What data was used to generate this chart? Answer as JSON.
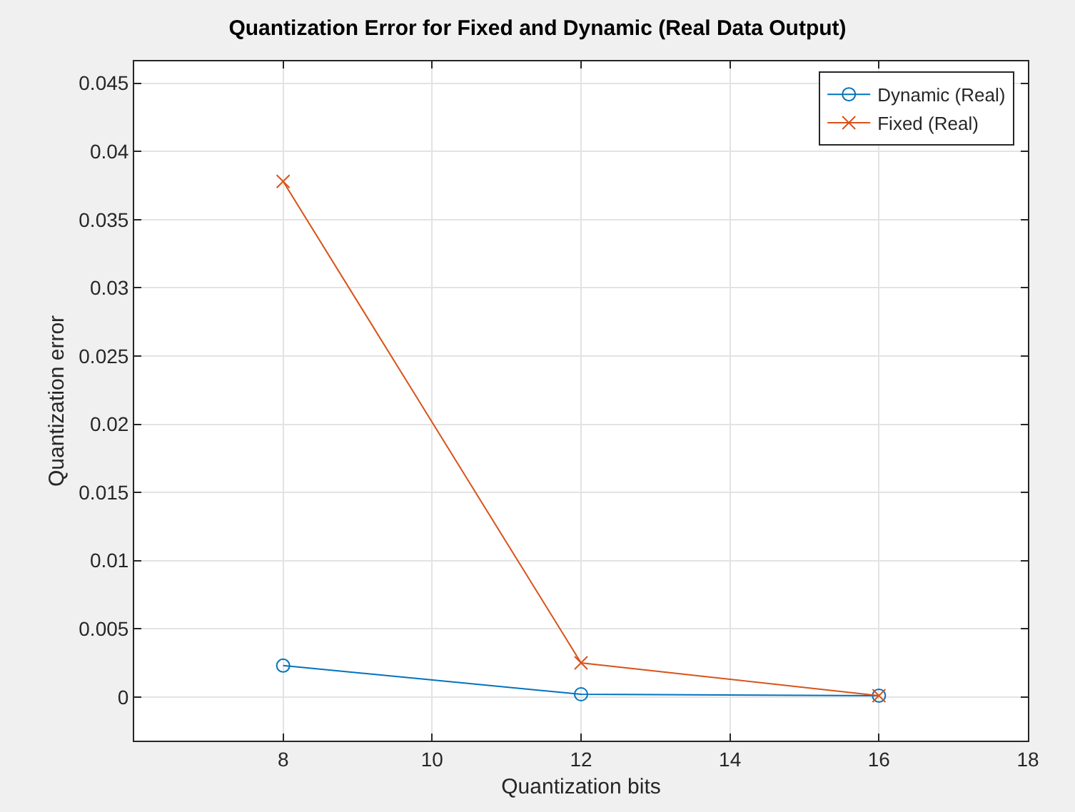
{
  "chart_data": {
    "type": "line",
    "title": "Quantization Error for Fixed and Dynamic (Real Data Output)",
    "xlabel": "Quantization bits",
    "ylabel": "Quantization error",
    "x": [
      8,
      12,
      16
    ],
    "series": [
      {
        "name": "Dynamic (Real)",
        "color": "#0072bd",
        "values": [
          0.0023,
          0.0002,
          0.0001
        ],
        "marker": "circle"
      },
      {
        "name": "Fixed (Real)",
        "color": "#d95319",
        "values": [
          0.0378,
          0.0025,
          0.0001
        ],
        "marker": "cross"
      }
    ],
    "xlim": [
      6,
      18
    ],
    "xticks": [
      8,
      10,
      12,
      14,
      16,
      18
    ],
    "ylim": [
      -0.0032,
      0.0466
    ],
    "yticks": [
      0,
      0.005,
      0.01,
      0.015,
      0.02,
      0.025,
      0.03,
      0.035,
      0.04,
      0.045
    ],
    "grid": true,
    "legend": "top right",
    "line_style": "solid"
  }
}
